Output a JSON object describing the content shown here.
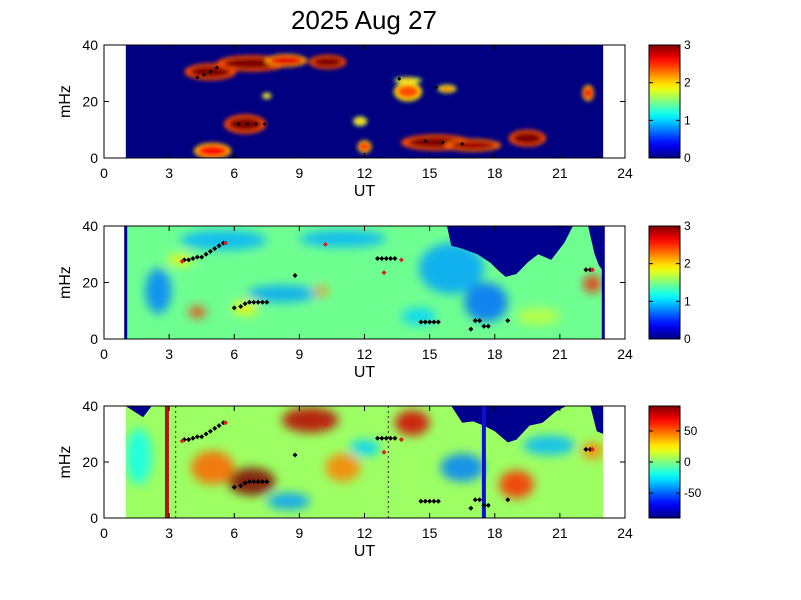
{
  "title": "2025 Aug 27",
  "chart_data": [
    {
      "type": "heatmap",
      "xlabel": "UT",
      "ylabel": "mHz",
      "xlim": [
        0,
        24
      ],
      "ylim": [
        0,
        40
      ],
      "xticks": [
        "0",
        "3",
        "6",
        "9",
        "12",
        "15",
        "18",
        "21",
        "24"
      ],
      "yticks": [
        "0",
        "20",
        "40"
      ],
      "data_extent_ut": [
        1,
        23
      ],
      "colorbar": {
        "range": [
          0,
          3
        ],
        "ticks": [
          "0",
          "1",
          "2",
          "3"
        ]
      },
      "background_level": 0,
      "blobs": [
        {
          "x": 4.9,
          "y": 30.5,
          "rx": 1.1,
          "ry": 2.6,
          "v": 3.0
        },
        {
          "x": 6.8,
          "y": 33.5,
          "rx": 1.5,
          "ry": 2.5,
          "v": 3.0
        },
        {
          "x": 8.4,
          "y": 34.5,
          "rx": 0.9,
          "ry": 2.0,
          "v": 2.7
        },
        {
          "x": 10.3,
          "y": 34.0,
          "rx": 0.8,
          "ry": 2.2,
          "v": 3.0
        },
        {
          "x": 6.5,
          "y": 12.0,
          "rx": 0.9,
          "ry": 3.0,
          "v": 3.0
        },
        {
          "x": 5.0,
          "y": 2.5,
          "rx": 0.8,
          "ry": 2.5,
          "v": 2.6
        },
        {
          "x": 12.0,
          "y": 4.0,
          "rx": 0.3,
          "ry": 2.0,
          "v": 2.5
        },
        {
          "x": 14.0,
          "y": 23.5,
          "rx": 0.6,
          "ry": 3.0,
          "v": 2.4
        },
        {
          "x": 15.3,
          "y": 5.5,
          "rx": 1.5,
          "ry": 2.5,
          "v": 3.0
        },
        {
          "x": 17.0,
          "y": 4.5,
          "rx": 1.2,
          "ry": 2.0,
          "v": 2.9
        },
        {
          "x": 19.5,
          "y": 7.0,
          "rx": 0.8,
          "ry": 2.6,
          "v": 3.0
        },
        {
          "x": 11.8,
          "y": 13.0,
          "rx": 0.3,
          "ry": 1.5,
          "v": 2.0
        },
        {
          "x": 15.8,
          "y": 24.5,
          "rx": 0.4,
          "ry": 1.3,
          "v": 2.2
        },
        {
          "x": 22.3,
          "y": 23.0,
          "rx": 0.25,
          "ry": 2.5,
          "v": 2.6
        },
        {
          "x": 7.5,
          "y": 22.0,
          "rx": 0.2,
          "ry": 1.0,
          "v": 2.0
        },
        {
          "x": 14.0,
          "y": 27.5,
          "rx": 0.6,
          "ry": 1.0,
          "v": 2.0
        }
      ],
      "markers": [],
      "vlines": []
    },
    {
      "type": "heatmap",
      "xlabel": "UT",
      "ylabel": "mHz",
      "xlim": [
        0,
        24
      ],
      "ylim": [
        0,
        40
      ],
      "xticks": [
        "0",
        "3",
        "6",
        "9",
        "12",
        "15",
        "18",
        "21",
        "24"
      ],
      "yticks": [
        "0",
        "20",
        "40"
      ],
      "data_extent_ut": [
        1,
        23
      ],
      "colorbar": {
        "range": [
          0,
          3
        ],
        "ticks": [
          "0",
          "1",
          "2",
          "3"
        ]
      },
      "background_level": 1.45,
      "blobs": [
        {
          "x": 2.5,
          "y": 17.0,
          "rx": 0.6,
          "ry": 8.0,
          "v": 0.75
        },
        {
          "x": 5.5,
          "y": 35.0,
          "rx": 2.0,
          "ry": 3.5,
          "v": 0.9
        },
        {
          "x": 8.2,
          "y": 16.0,
          "rx": 1.6,
          "ry": 3.0,
          "v": 0.85
        },
        {
          "x": 11.0,
          "y": 35.5,
          "rx": 2.0,
          "ry": 3.0,
          "v": 0.9
        },
        {
          "x": 16.0,
          "y": 25.0,
          "rx": 1.5,
          "ry": 9.0,
          "v": 0.85
        },
        {
          "x": 17.6,
          "y": 13.0,
          "rx": 1.0,
          "ry": 7.0,
          "v": 0.7
        },
        {
          "x": 4.3,
          "y": 9.5,
          "rx": 0.4,
          "ry": 2.0,
          "v": 2.5
        },
        {
          "x": 10.0,
          "y": 17.0,
          "rx": 0.3,
          "ry": 2.0,
          "v": 2.2
        },
        {
          "x": 22.5,
          "y": 19.5,
          "rx": 0.4,
          "ry": 3.0,
          "v": 2.6
        },
        {
          "x": 6.5,
          "y": 11.0,
          "rx": 0.6,
          "ry": 2.5,
          "v": 1.9
        },
        {
          "x": 20.0,
          "y": 8.0,
          "rx": 1.0,
          "ry": 3.0,
          "v": 1.7
        },
        {
          "x": 14.5,
          "y": 8.0,
          "rx": 0.8,
          "ry": 3.0,
          "v": 1.0
        },
        {
          "x": 3.5,
          "y": 28.0,
          "rx": 0.6,
          "ry": 2.0,
          "v": 1.9
        }
      ],
      "markers": [],
      "vlines": []
    },
    {
      "type": "heatmap",
      "xlabel": "UT",
      "ylabel": "mHz",
      "xlim": [
        0,
        24
      ],
      "ylim": [
        0,
        40
      ],
      "xticks": [
        "0",
        "3",
        "6",
        "9",
        "12",
        "15",
        "18",
        "21",
        "24"
      ],
      "yticks": [
        "0",
        "20",
        "40"
      ],
      "data_extent_ut": [
        1,
        23
      ],
      "colorbar": {
        "range": [
          -90,
          90
        ],
        "ticks": [
          "50",
          "0",
          "-50"
        ],
        "tick_values": [
          50,
          0,
          -50
        ]
      },
      "background_level": 5,
      "blobs": [
        {
          "x": 6.8,
          "y": 13.0,
          "rx": 1.1,
          "ry": 5.0,
          "v": 90
        },
        {
          "x": 9.5,
          "y": 35.0,
          "rx": 1.3,
          "ry": 4.5,
          "v": 80
        },
        {
          "x": 14.2,
          "y": 34.0,
          "rx": 0.8,
          "ry": 4.5,
          "v": 75
        },
        {
          "x": 5.0,
          "y": 18.0,
          "rx": 1.0,
          "ry": 6.0,
          "v": 50
        },
        {
          "x": 19.0,
          "y": 12.0,
          "rx": 0.8,
          "ry": 5.0,
          "v": 60
        },
        {
          "x": 8.5,
          "y": 6.0,
          "rx": 1.0,
          "ry": 3.0,
          "v": -40
        },
        {
          "x": 12.0,
          "y": 25.0,
          "rx": 0.7,
          "ry": 3.0,
          "v": -30
        },
        {
          "x": 16.5,
          "y": 18.0,
          "rx": 1.0,
          "ry": 5.0,
          "v": -45
        },
        {
          "x": 20.5,
          "y": 26.0,
          "rx": 1.2,
          "ry": 3.5,
          "v": -35
        },
        {
          "x": 1.6,
          "y": 22.0,
          "rx": 0.6,
          "ry": 10.0,
          "v": -20
        },
        {
          "x": 11.0,
          "y": 18.0,
          "rx": 0.8,
          "ry": 5.0,
          "v": 45
        },
        {
          "x": 22.5,
          "y": 24.0,
          "rx": 0.5,
          "ry": 3.0,
          "v": 45
        }
      ],
      "markers": [],
      "vlines": [
        {
          "x": 2.9,
          "color": "#b21414",
          "style": "solid",
          "width": 4
        },
        {
          "x": 3.3,
          "color": "#444444",
          "style": "dotted",
          "width": 1.2
        },
        {
          "x": 13.1,
          "color": "#444444",
          "style": "dotted",
          "width": 1.2
        },
        {
          "x": 17.5,
          "color": "#1010cc",
          "style": "solid",
          "width": 4
        }
      ]
    }
  ],
  "shared_markers": {
    "black": [
      [
        3.7,
        28.0
      ],
      [
        3.9,
        28.0
      ],
      [
        4.1,
        28.5
      ],
      [
        4.3,
        29.0
      ],
      [
        4.5,
        29.0
      ],
      [
        4.7,
        30.0
      ],
      [
        4.9,
        31.0
      ],
      [
        5.1,
        32.0
      ],
      [
        5.3,
        33.0
      ],
      [
        5.5,
        34.0
      ],
      [
        6.0,
        11.0
      ],
      [
        6.3,
        11.5
      ],
      [
        6.5,
        12.5
      ],
      [
        6.7,
        13.0
      ],
      [
        6.9,
        13.0
      ],
      [
        7.1,
        13.0
      ],
      [
        7.3,
        13.0
      ],
      [
        7.5,
        13.0
      ],
      [
        8.8,
        22.5
      ],
      [
        12.6,
        28.5
      ],
      [
        12.8,
        28.5
      ],
      [
        13.0,
        28.5
      ],
      [
        13.2,
        28.5
      ],
      [
        13.4,
        28.5
      ],
      [
        14.6,
        6.0
      ],
      [
        14.8,
        6.0
      ],
      [
        15.0,
        6.0
      ],
      [
        15.2,
        6.0
      ],
      [
        15.4,
        6.0
      ],
      [
        16.9,
        3.5
      ],
      [
        17.1,
        6.5
      ],
      [
        17.3,
        6.5
      ],
      [
        17.5,
        4.5
      ],
      [
        17.7,
        4.5
      ],
      [
        18.6,
        6.5
      ],
      [
        22.2,
        24.5
      ],
      [
        22.4,
        24.5
      ]
    ],
    "red": [
      [
        3.6,
        27.5
      ],
      [
        5.6,
        34.0
      ],
      [
        10.2,
        33.5
      ],
      [
        13.7,
        28.0
      ],
      [
        12.9,
        23.5
      ],
      [
        22.5,
        24.5
      ]
    ]
  },
  "panel2_white_mask": [
    [
      1.0,
      40
    ],
    [
      1.6,
      40
    ],
    [
      1.8,
      35
    ],
    [
      2.0,
      35.5
    ],
    [
      2.2,
      40
    ],
    [
      16.0,
      40
    ],
    [
      16.3,
      37
    ],
    [
      16.6,
      36
    ],
    [
      17.0,
      35.5
    ],
    [
      17.6,
      34
    ],
    [
      18.2,
      30
    ],
    [
      18.6,
      26
    ],
    [
      19.0,
      24.5
    ],
    [
      19.3,
      28
    ],
    [
      19.6,
      30.5
    ],
    [
      20.0,
      33
    ],
    [
      20.4,
      31
    ],
    [
      20.9,
      33
    ],
    [
      21.3,
      36.5
    ],
    [
      21.5,
      40
    ]
  ],
  "panel2_blue_top": [
    [
      15.8,
      40
    ],
    [
      16.0,
      33
    ],
    [
      16.5,
      32
    ],
    [
      17.2,
      30
    ],
    [
      17.8,
      27
    ],
    [
      18.2,
      24
    ],
    [
      18.5,
      22
    ],
    [
      19.0,
      23
    ],
    [
      19.5,
      27
    ],
    [
      20.0,
      30
    ],
    [
      20.6,
      28
    ],
    [
      21.2,
      34
    ],
    [
      21.6,
      40
    ],
    [
      22.3,
      40
    ],
    [
      22.6,
      30
    ],
    [
      22.8,
      26
    ],
    [
      23.0,
      24
    ]
  ],
  "panel3_blue_top": [
    [
      1.0,
      40
    ],
    [
      1.4,
      38
    ],
    [
      1.8,
      36
    ],
    [
      2.2,
      40
    ],
    [
      16.0,
      40
    ],
    [
      16.5,
      34
    ],
    [
      17.0,
      34.5
    ],
    [
      17.5,
      33
    ],
    [
      18.0,
      31
    ],
    [
      18.6,
      27
    ],
    [
      19.0,
      28
    ],
    [
      19.6,
      33
    ],
    [
      20.2,
      34
    ],
    [
      20.8,
      38
    ],
    [
      21.3,
      40
    ],
    [
      22.4,
      40
    ],
    [
      22.7,
      31
    ],
    [
      23.0,
      30
    ]
  ]
}
